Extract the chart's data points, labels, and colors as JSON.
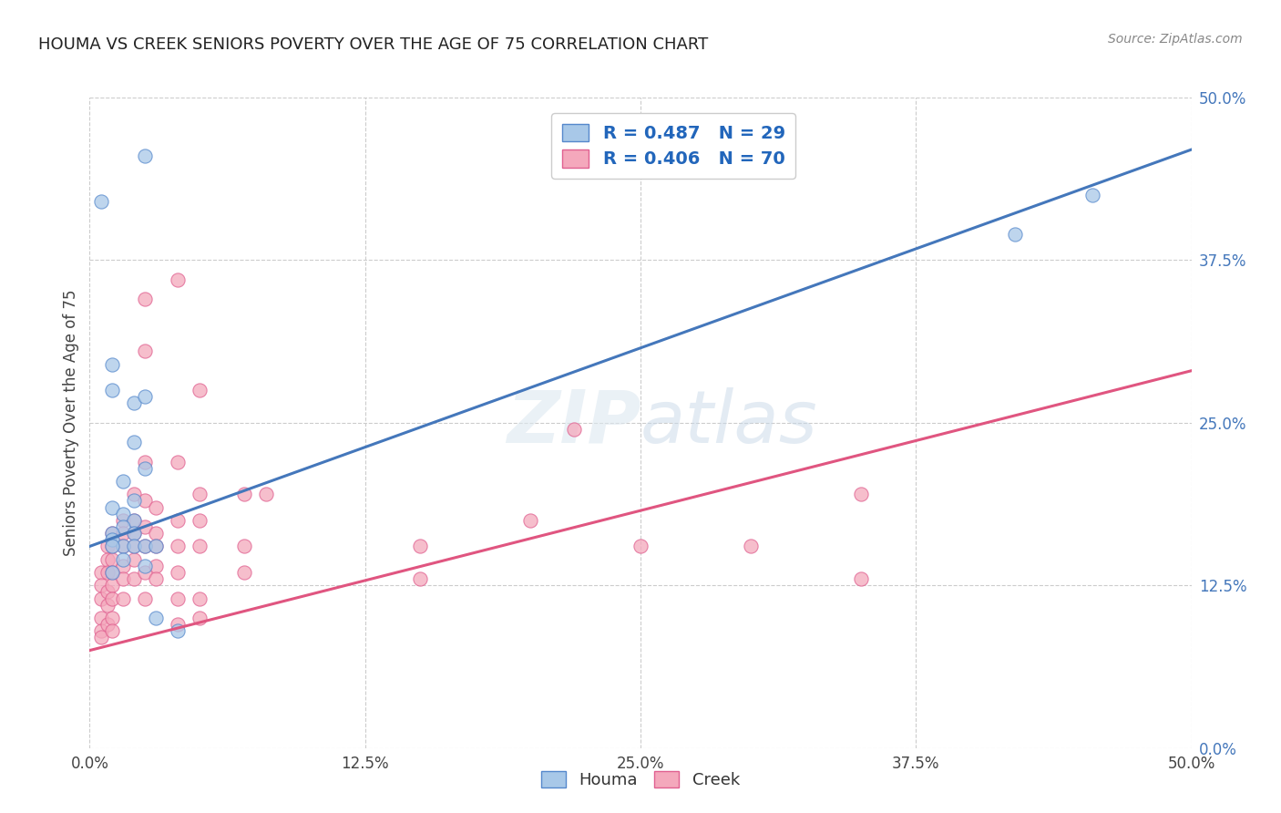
{
  "title": "HOUMA VS CREEK SENIORS POVERTY OVER THE AGE OF 75 CORRELATION CHART",
  "source": "Source: ZipAtlas.com",
  "ylabel": "Seniors Poverty Over the Age of 75",
  "tick_labels": [
    "0.0%",
    "12.5%",
    "25.0%",
    "37.5%",
    "50.0%"
  ],
  "xmin": 0.0,
  "xmax": 0.5,
  "ymin": 0.0,
  "ymax": 0.5,
  "houma_R": 0.487,
  "houma_N": 29,
  "creek_R": 0.406,
  "creek_N": 70,
  "houma_color": "#a8c8e8",
  "creek_color": "#f4a8bc",
  "houma_edge_color": "#5588cc",
  "creek_edge_color": "#e06090",
  "houma_line_color": "#4477bb",
  "creek_line_color": "#e05580",
  "legend_R_color": "#2266bb",
  "watermark": "ZIPatlas",
  "houma_scatter": [
    [
      0.005,
      0.42
    ],
    [
      0.025,
      0.455
    ],
    [
      0.01,
      0.295
    ],
    [
      0.01,
      0.275
    ],
    [
      0.02,
      0.265
    ],
    [
      0.025,
      0.27
    ],
    [
      0.02,
      0.235
    ],
    [
      0.025,
      0.215
    ],
    [
      0.015,
      0.205
    ],
    [
      0.02,
      0.19
    ],
    [
      0.01,
      0.185
    ],
    [
      0.015,
      0.18
    ],
    [
      0.02,
      0.175
    ],
    [
      0.015,
      0.17
    ],
    [
      0.01,
      0.165
    ],
    [
      0.02,
      0.165
    ],
    [
      0.01,
      0.16
    ],
    [
      0.015,
      0.155
    ],
    [
      0.02,
      0.155
    ],
    [
      0.025,
      0.155
    ],
    [
      0.01,
      0.155
    ],
    [
      0.03,
      0.155
    ],
    [
      0.015,
      0.145
    ],
    [
      0.025,
      0.14
    ],
    [
      0.01,
      0.135
    ],
    [
      0.03,
      0.1
    ],
    [
      0.04,
      0.09
    ],
    [
      0.42,
      0.395
    ],
    [
      0.455,
      0.425
    ]
  ],
  "creek_scatter": [
    [
      0.005,
      0.135
    ],
    [
      0.005,
      0.125
    ],
    [
      0.005,
      0.115
    ],
    [
      0.005,
      0.1
    ],
    [
      0.005,
      0.09
    ],
    [
      0.005,
      0.085
    ],
    [
      0.008,
      0.155
    ],
    [
      0.008,
      0.145
    ],
    [
      0.008,
      0.135
    ],
    [
      0.008,
      0.12
    ],
    [
      0.008,
      0.11
    ],
    [
      0.008,
      0.095
    ],
    [
      0.01,
      0.165
    ],
    [
      0.01,
      0.155
    ],
    [
      0.01,
      0.145
    ],
    [
      0.01,
      0.135
    ],
    [
      0.01,
      0.125
    ],
    [
      0.01,
      0.115
    ],
    [
      0.01,
      0.1
    ],
    [
      0.01,
      0.09
    ],
    [
      0.015,
      0.175
    ],
    [
      0.015,
      0.165
    ],
    [
      0.015,
      0.155
    ],
    [
      0.015,
      0.14
    ],
    [
      0.015,
      0.13
    ],
    [
      0.015,
      0.115
    ],
    [
      0.02,
      0.195
    ],
    [
      0.02,
      0.175
    ],
    [
      0.02,
      0.165
    ],
    [
      0.02,
      0.155
    ],
    [
      0.02,
      0.145
    ],
    [
      0.02,
      0.13
    ],
    [
      0.025,
      0.345
    ],
    [
      0.025,
      0.305
    ],
    [
      0.025,
      0.22
    ],
    [
      0.025,
      0.19
    ],
    [
      0.025,
      0.17
    ],
    [
      0.025,
      0.155
    ],
    [
      0.025,
      0.135
    ],
    [
      0.025,
      0.115
    ],
    [
      0.03,
      0.185
    ],
    [
      0.03,
      0.165
    ],
    [
      0.03,
      0.155
    ],
    [
      0.03,
      0.14
    ],
    [
      0.03,
      0.13
    ],
    [
      0.04,
      0.36
    ],
    [
      0.04,
      0.22
    ],
    [
      0.04,
      0.175
    ],
    [
      0.04,
      0.155
    ],
    [
      0.04,
      0.135
    ],
    [
      0.04,
      0.115
    ],
    [
      0.04,
      0.095
    ],
    [
      0.05,
      0.275
    ],
    [
      0.05,
      0.195
    ],
    [
      0.05,
      0.175
    ],
    [
      0.05,
      0.155
    ],
    [
      0.05,
      0.115
    ],
    [
      0.05,
      0.1
    ],
    [
      0.07,
      0.195
    ],
    [
      0.07,
      0.155
    ],
    [
      0.07,
      0.135
    ],
    [
      0.08,
      0.195
    ],
    [
      0.15,
      0.155
    ],
    [
      0.15,
      0.13
    ],
    [
      0.2,
      0.175
    ],
    [
      0.22,
      0.245
    ],
    [
      0.25,
      0.155
    ],
    [
      0.3,
      0.155
    ],
    [
      0.35,
      0.195
    ],
    [
      0.35,
      0.13
    ]
  ],
  "houma_trendline": [
    [
      0.0,
      0.155
    ],
    [
      0.5,
      0.46
    ]
  ],
  "creek_trendline": [
    [
      0.0,
      0.075
    ],
    [
      0.5,
      0.29
    ]
  ]
}
